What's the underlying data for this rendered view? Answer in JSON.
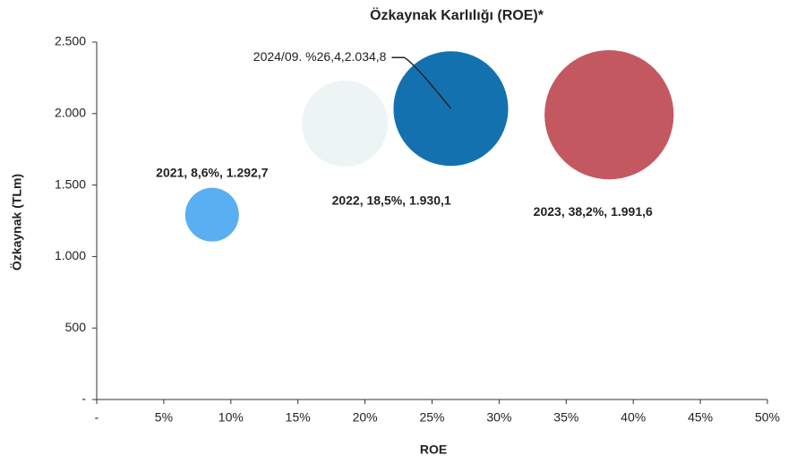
{
  "chart_data": {
    "type": "bubble",
    "title": "Özkaynak Karlılığı (ROE)*",
    "xlabel": "ROE",
    "ylabel": "Özkaynak (TLm)",
    "x": [
      8.6,
      18.5,
      38.2,
      26.4
    ],
    "values": [
      1292.7,
      1930.1,
      1991.6,
      2034.8
    ],
    "sizes": [
      900,
      2300,
      5200,
      4100
    ],
    "colors": [
      "#5aaef2",
      "#edf4f4",
      "#c45860",
      "#1471b0"
    ],
    "labels": [
      "2021, 8,6%, 1.292,7",
      "2022, 18,5%, 1.930,1",
      "2023, 38,2%, 1.991,6",
      "2024/09. %26,4,2.034,8"
    ],
    "xlim": [
      0,
      50
    ],
    "xticks": [
      {
        "value": 0,
        "label": "-"
      },
      {
        "value": 5,
        "label": "5%"
      },
      {
        "value": 10,
        "label": "10%"
      },
      {
        "value": 15,
        "label": "15%"
      },
      {
        "value": 20,
        "label": "20%"
      },
      {
        "value": 25,
        "label": "25%"
      },
      {
        "value": 30,
        "label": "30%"
      },
      {
        "value": 35,
        "label": "35%"
      },
      {
        "value": 40,
        "label": "40%"
      },
      {
        "value": 45,
        "label": "45%"
      },
      {
        "value": 50,
        "label": "50%"
      }
    ],
    "ylim": [
      0,
      2500
    ],
    "yticks": [
      {
        "value": 0,
        "label": "-"
      },
      500,
      {
        "value": 1000,
        "label": "1.000"
      },
      {
        "value": 1500,
        "label": "1.500"
      },
      {
        "value": 2000,
        "label": "2.000"
      },
      {
        "value": 2500,
        "label": "2.500"
      }
    ]
  }
}
